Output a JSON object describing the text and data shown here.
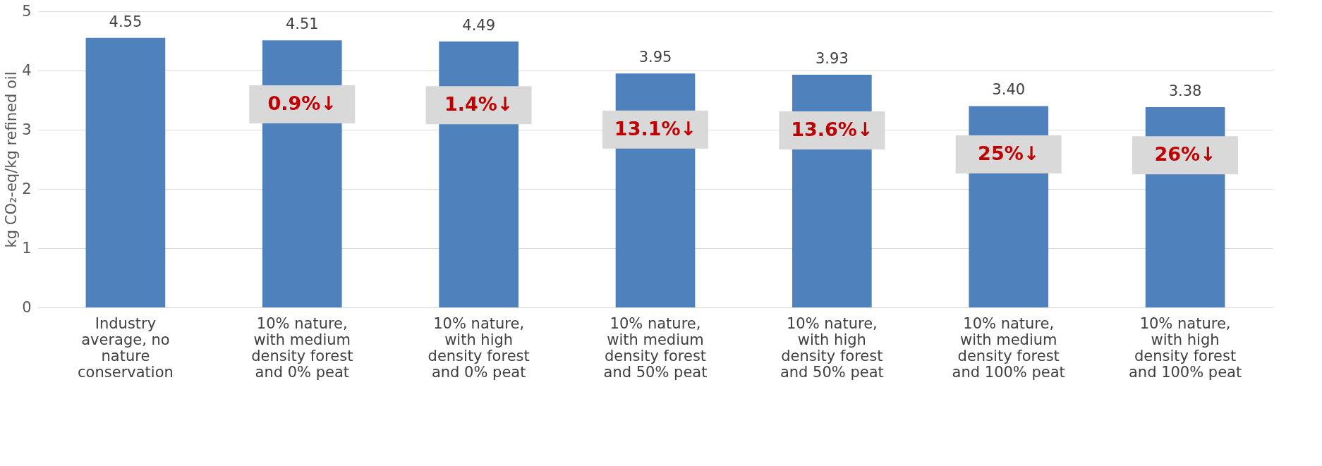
{
  "chart_data": {
    "type": "bar",
    "ylabel": "kg CO₂-eq/kg refined oil",
    "categories": [
      "Industry average, no nature conservation",
      "10% nature, with medium density forest and 0% peat",
      "10% nature, with high density forest and 0% peat",
      "10% nature, with medium density forest and 50% peat",
      "10% nature, with high density forest and 50% peat",
      "10% nature, with medium density forest and 100% peat",
      "10% nature, with high density forest and 100% peat"
    ],
    "values": [
      4.55,
      4.51,
      4.49,
      3.95,
      3.93,
      3.4,
      3.38
    ],
    "value_labels": [
      "4.55",
      "4.51",
      "4.49",
      "3.95",
      "3.93",
      "3.40",
      "3.38"
    ],
    "color": "#4f81bd",
    "ylim": [
      0,
      5
    ],
    "yticks": [
      0,
      1,
      2,
      3,
      4,
      5
    ],
    "grid": "y",
    "annotations": [
      "0.9%↓",
      "1.4%↓",
      "13.1%↓",
      "13.6%↓",
      "25%↓",
      "26%↓"
    ]
  }
}
